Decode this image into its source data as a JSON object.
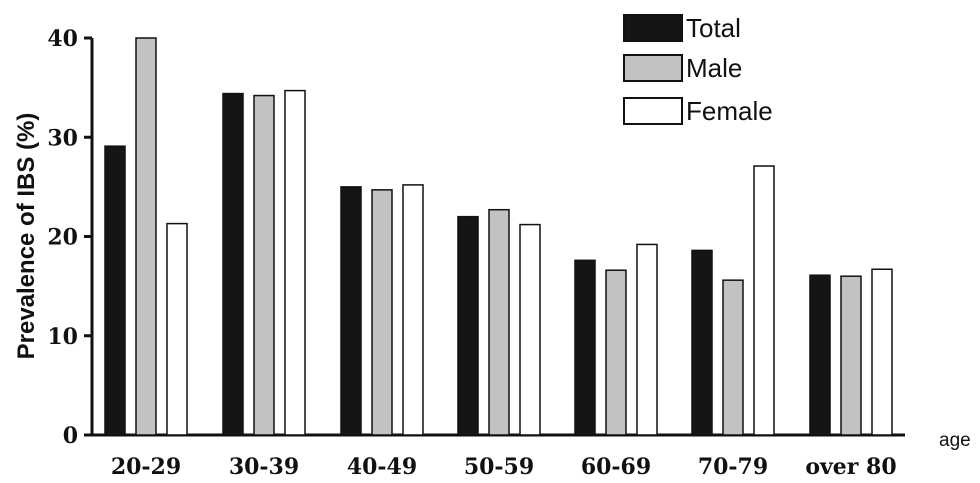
{
  "chart_data": {
    "type": "bar",
    "title": "",
    "xlabel": "age",
    "ylabel": "Prevalence of IBS (%)",
    "ylim": [
      0,
      40
    ],
    "yticks": [
      "0",
      "10",
      "20",
      "30",
      "40"
    ],
    "categories": [
      "20-29",
      "30-39",
      "40-49",
      "50-59",
      "60-69",
      "70-79",
      "over 80"
    ],
    "series": [
      {
        "name": "Total",
        "color": "#151515",
        "values": [
          29.1,
          34.4,
          25.0,
          22.0,
          17.6,
          18.6,
          16.1
        ]
      },
      {
        "name": "Male",
        "color": "#c2c2c2",
        "values": [
          40.0,
          34.2,
          24.7,
          22.7,
          16.6,
          15.6,
          16.0
        ]
      },
      {
        "name": "Female",
        "color": "#ffffff",
        "values": [
          21.3,
          34.7,
          25.2,
          21.2,
          19.2,
          27.1,
          16.7
        ]
      }
    ],
    "legend": "top-right",
    "grid": false
  }
}
